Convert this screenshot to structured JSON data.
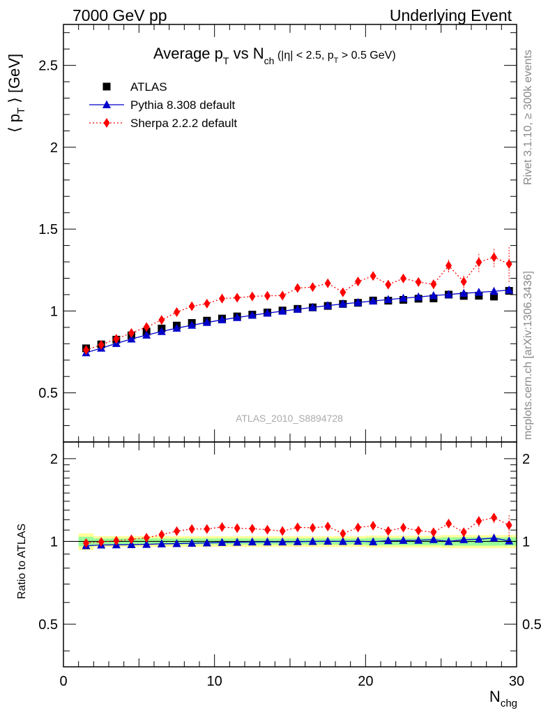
{
  "header": {
    "left": "7000 GeV pp",
    "right": "Underlying Event"
  },
  "side": {
    "rivet": "Rivet 3.1.10, ≥ 300k events",
    "mcplots": "mcplots.cern.ch [arXiv:1306.3436]"
  },
  "chart_data": [
    {
      "type": "scatter",
      "title": "Average pT vs Nch (|η| < 2.5, pT > 0.5 GeV)",
      "ylabel": "⟨ pT ⟩ [GeV]",
      "xlabel": "Nchg",
      "analysis_tag": "ATLAS_2010_S8894728",
      "xlim": [
        0,
        30
      ],
      "ylim": [
        0.2,
        2.75
      ],
      "yticks": [
        0.5,
        1,
        1.5,
        2,
        2.5
      ],
      "ytick_labels": [
        "0.5",
        "1",
        "1.5",
        "2",
        "2.5"
      ],
      "legend_position": "top-left",
      "x": [
        1.5,
        2.5,
        3.5,
        4.5,
        5.5,
        6.5,
        7.5,
        8.5,
        9.5,
        10.5,
        11.5,
        12.5,
        13.5,
        14.5,
        15.5,
        16.5,
        17.5,
        18.5,
        19.5,
        20.5,
        21.5,
        22.5,
        23.5,
        24.5,
        25.5,
        26.5,
        27.5,
        28.5,
        29.5
      ],
      "series": [
        {
          "name": "ATLAS",
          "color": "#000000",
          "marker": "square",
          "values": [
            0.772,
            0.796,
            0.825,
            0.851,
            0.874,
            0.893,
            0.911,
            0.927,
            0.941,
            0.954,
            0.967,
            0.978,
            0.991,
            1.003,
            1.013,
            1.022,
            1.031,
            1.043,
            1.05,
            1.064,
            1.063,
            1.068,
            1.075,
            1.077,
            1.1,
            1.092,
            1.093,
            1.088,
            1.123
          ]
        },
        {
          "name": "Pythia 8.308 default",
          "color": "#0000cc",
          "marker": "triangle",
          "values": [
            0.745,
            0.773,
            0.802,
            0.829,
            0.853,
            0.875,
            0.895,
            0.913,
            0.93,
            0.946,
            0.96,
            0.974,
            0.987,
            0.999,
            1.011,
            1.022,
            1.033,
            1.043,
            1.052,
            1.061,
            1.07,
            1.078,
            1.086,
            1.094,
            1.101,
            1.108,
            1.114,
            1.12,
            1.128
          ]
        },
        {
          "name": "Sherpa 2.2.2 default",
          "color": "#ff0000",
          "marker": "diamond",
          "values": [
            0.762,
            0.793,
            0.83,
            0.866,
            0.902,
            0.945,
            0.993,
            1.029,
            1.045,
            1.076,
            1.081,
            1.089,
            1.093,
            1.094,
            1.14,
            1.146,
            1.169,
            1.114,
            1.18,
            1.214,
            1.161,
            1.199,
            1.177,
            1.163,
            1.277,
            1.179,
            1.298,
            1.328,
            1.287
          ],
          "errors": [
            0.004,
            0.004,
            0.004,
            0.004,
            0.004,
            0.005,
            0.005,
            0.006,
            0.006,
            0.007,
            0.007,
            0.008,
            0.008,
            0.009,
            0.01,
            0.011,
            0.012,
            0.013,
            0.015,
            0.017,
            0.019,
            0.021,
            0.024,
            0.028,
            0.04,
            0.04,
            0.06,
            0.06,
            0.11
          ]
        }
      ]
    },
    {
      "type": "scatter",
      "ylabel": "Ratio to ATLAS",
      "xlabel": "Nchg",
      "xlim": [
        0,
        30
      ],
      "ylim": [
        0.35,
        2.3
      ],
      "yticks": [
        0.5,
        1,
        2
      ],
      "ytick_labels": [
        "0.5",
        "1",
        "2"
      ],
      "xticks": [
        0,
        10,
        20,
        30
      ],
      "xtick_labels": [
        "0",
        "10",
        "20",
        "30"
      ],
      "reference": 1,
      "x": [
        1.5,
        2.5,
        3.5,
        4.5,
        5.5,
        6.5,
        7.5,
        8.5,
        9.5,
        10.5,
        11.5,
        12.5,
        13.5,
        14.5,
        15.5,
        16.5,
        17.5,
        18.5,
        19.5,
        20.5,
        21.5,
        22.5,
        23.5,
        24.5,
        25.5,
        26.5,
        27.5,
        28.5,
        29.5
      ],
      "band_outer": [
        0.07,
        0.045,
        0.045,
        0.045,
        0.045,
        0.045,
        0.045,
        0.045,
        0.045,
        0.045,
        0.045,
        0.045,
        0.045,
        0.045,
        0.045,
        0.045,
        0.045,
        0.045,
        0.045,
        0.05,
        0.05,
        0.05,
        0.05,
        0.05,
        0.055,
        0.055,
        0.055,
        0.055,
        0.055
      ],
      "band_inner": [
        0.04,
        0.025,
        0.025,
        0.025,
        0.025,
        0.025,
        0.025,
        0.025,
        0.025,
        0.025,
        0.025,
        0.025,
        0.025,
        0.025,
        0.025,
        0.025,
        0.025,
        0.025,
        0.025,
        0.03,
        0.03,
        0.03,
        0.03,
        0.03,
        0.035,
        0.035,
        0.035,
        0.035,
        0.035
      ],
      "series": [
        {
          "name": "Pythia 8.308 default",
          "color": "#0000cc",
          "marker": "triangle",
          "values": [
            0.965,
            0.971,
            0.972,
            0.974,
            0.976,
            0.98,
            0.982,
            0.985,
            0.988,
            0.992,
            0.993,
            0.996,
            0.996,
            0.996,
            0.998,
            1.0,
            1.002,
            1.0,
            1.002,
            0.997,
            1.007,
            1.009,
            1.01,
            1.016,
            1.0,
            1.015,
            1.019,
            1.029,
            1.004
          ]
        },
        {
          "name": "Sherpa 2.2.2 default",
          "color": "#ff0000",
          "marker": "diamond",
          "values": [
            0.987,
            0.996,
            1.006,
            1.018,
            1.032,
            1.058,
            1.09,
            1.11,
            1.11,
            1.128,
            1.118,
            1.113,
            1.103,
            1.091,
            1.125,
            1.121,
            1.134,
            1.068,
            1.124,
            1.141,
            1.092,
            1.123,
            1.095,
            1.08,
            1.161,
            1.08,
            1.187,
            1.221,
            1.146
          ],
          "errors": [
            0.005,
            0.005,
            0.005,
            0.005,
            0.005,
            0.006,
            0.006,
            0.007,
            0.007,
            0.008,
            0.008,
            0.009,
            0.009,
            0.01,
            0.011,
            0.012,
            0.013,
            0.014,
            0.016,
            0.018,
            0.02,
            0.022,
            0.025,
            0.03,
            0.04,
            0.04,
            0.055,
            0.055,
            0.1
          ]
        }
      ]
    }
  ]
}
